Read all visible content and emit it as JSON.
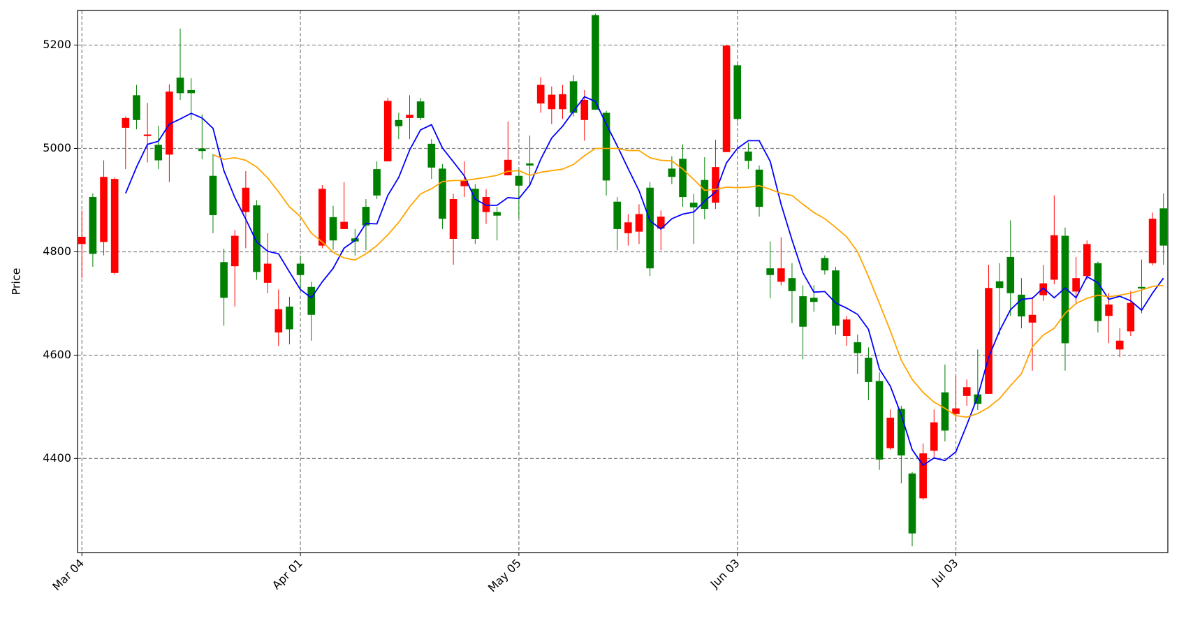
{
  "chart_data": {
    "type": "candlestick",
    "ylabel": "Price",
    "open": [
      4829,
      4796,
      4945,
      4941,
      5059,
      5055,
      5027,
      4977,
      5110,
      5107,
      5107,
      4995,
      4871,
      4711,
      4831,
      4924,
      4761,
      4777,
      4689,
      4650,
      4755,
      4678,
      4922,
      4822,
      4858,
      4820,
      4851,
      4909,
      5092,
      5043,
      5065,
      5059,
      4963,
      4864,
      4902,
      4938,
      4825,
      4906,
      4870,
      4978,
      4928,
      4967,
      5123,
      5104,
      5105,
      5069,
      5094,
      5075,
      4938,
      4844,
      4857,
      4873,
      4768,
      4868,
      4945,
      4906,
      4886,
      4883,
      4964,
      5199,
      5057,
      4976,
      4887,
      4755,
      4768,
      4724,
      4655,
      4703,
      4764,
      4657,
      4669,
      4604,
      4548,
      4398,
      4479,
      4406,
      4255,
      4410,
      4470,
      4454,
      4497,
      4538,
      4506,
      4730,
      4730,
      4720,
      4675,
      4678,
      4739,
      4832,
      4623,
      4749,
      4815,
      4666,
      4698,
      4628,
      4701,
      4729,
      4864,
      4812
    ],
    "high": [
      4880,
      4913,
      4977,
      4944,
      5062,
      5123,
      5088,
      5044,
      5124,
      5232,
      5136,
      5066,
      4989,
      4806,
      4842,
      4956,
      4900,
      4836,
      4727,
      4713,
      4793,
      4742,
      4929,
      4889,
      4935,
      4844,
      4902,
      4975,
      5098,
      5069,
      5103,
      5098,
      5018,
      4970,
      4912,
      4975,
      4931,
      4921,
      4887,
      5052,
      4960,
      5025,
      5138,
      5120,
      5123,
      5142,
      5113,
      5261,
      5073,
      4906,
      4873,
      4892,
      4935,
      4880,
      4985,
      5008,
      4912,
      4983,
      5017,
      5200,
      5164,
      5011,
      4967,
      4820,
      4828,
      4778,
      4735,
      4735,
      4793,
      4771,
      4676,
      4640,
      4615,
      4567,
      4495,
      4502,
      4374,
      4429,
      4495,
      4582,
      4560,
      4553,
      4611,
      4775,
      4778,
      4861,
      4749,
      4713,
      4775,
      4909,
      4847,
      4790,
      4822,
      4781,
      4720,
      4652,
      4724,
      4785,
      4876,
      4913
    ],
    "low": [
      4749,
      4771,
      4793,
      4756,
      4960,
      5037,
      4973,
      4960,
      4935,
      5094,
      5055,
      4979,
      4836,
      4657,
      4694,
      4807,
      4746,
      4720,
      4618,
      4621,
      4727,
      4628,
      4807,
      4804,
      4844,
      4793,
      4803,
      4902,
      4975,
      5018,
      5018,
      5055,
      4941,
      4844,
      4775,
      4906,
      4815,
      4854,
      4822,
      4948,
      4865,
      4927,
      5069,
      5047,
      5057,
      5062,
      5015,
      5075,
      4909,
      4803,
      4812,
      4815,
      4753,
      4803,
      4931,
      4887,
      4815,
      4863,
      4883,
      4993,
      5052,
      4960,
      4868,
      4710,
      4735,
      4662,
      4592,
      4684,
      4756,
      4640,
      4618,
      4564,
      4513,
      4378,
      4417,
      4352,
      4230,
      4320,
      4400,
      4433,
      4473,
      4502,
      4494,
      4525,
      4640,
      4676,
      4652,
      4570,
      4705,
      4737,
      4570,
      4698,
      4746,
      4644,
      4623,
      4596,
      4637,
      4681,
      4774,
      4775
    ],
    "close": [
      4815,
      4906,
      4819,
      4759,
      5040,
      5103,
      5024,
      5007,
      4988,
      5137,
      5113,
      5000,
      4947,
      4780,
      4772,
      4877,
      4890,
      4740,
      4644,
      4694,
      4777,
      4732,
      4812,
      4867,
      4844,
      4826,
      4887,
      4960,
      4975,
      5055,
      5059,
      5091,
      5009,
      4961,
      4825,
      4927,
      4922,
      4877,
      4877,
      4948,
      4947,
      4971,
      5087,
      5076,
      5076,
      5130,
      5055,
      5258,
      5069,
      4897,
      4836,
      4839,
      4924,
      4845,
      4961,
      4980,
      4895,
      4939,
      4895,
      4993,
      5161,
      4994,
      4959,
      4768,
      4742,
      4749,
      4714,
      4711,
      4788,
      4764,
      4637,
      4625,
      4595,
      4550,
      4420,
      4496,
      4371,
      4323,
      4415,
      4528,
      4486,
      4521,
      4524,
      4525,
      4743,
      4790,
      4717,
      4663,
      4716,
      4746,
      4831,
      4723,
      4753,
      4778,
      4676,
      4611,
      4646,
      4732,
      4778,
      4884
    ],
    "up_color": "#008000",
    "down_color": "#ff0000",
    "lines": [
      {
        "color": "#0000ff",
        "values": [
          null,
          null,
          null,
          null,
          4913,
          4964,
          5008,
          5014,
          5047,
          5057,
          5068,
          5059,
          5039,
          4957,
          4905,
          4863,
          4819,
          4801,
          4796,
          4761,
          4727,
          4711,
          4742,
          4768,
          4807,
          4822,
          4855,
          4854,
          4909,
          4944,
          4997,
          5036,
          5046,
          5001,
          4974,
          4947,
          4902,
          4890,
          4890,
          4905,
          4903,
          4929,
          4979,
          5020,
          5043,
          5072,
          5100,
          5091,
          5047,
          5005,
          4961,
          4918,
          4860,
          4844,
          4864,
          4873,
          4877,
          4898,
          4916,
          4972,
          5000,
          5015,
          5015,
          4975,
          4892,
          4823,
          4759,
          4722,
          4723,
          4701,
          4691,
          4679,
          4650,
          4573,
          4540,
          4484,
          4417,
          4387,
          4401,
          4396,
          4413,
          4465,
          4520,
          4596,
          4647,
          4688,
          4708,
          4710,
          4730,
          4711,
          4730,
          4711,
          4752,
          4740,
          4708,
          4714,
          4705,
          4687,
          4720,
          4749
        ]
      },
      {
        "color": "#ffa500",
        "values": [
          null,
          null,
          null,
          null,
          null,
          null,
          null,
          null,
          null,
          null,
          null,
          null,
          4988,
          4979,
          4982,
          4977,
          4964,
          4943,
          4916,
          4887,
          4868,
          4836,
          4819,
          4799,
          4788,
          4784,
          4796,
          4812,
          4833,
          4857,
          4887,
          4912,
          4922,
          4936,
          4938,
          4938,
          4941,
          4944,
          4948,
          4956,
          4957,
          4948,
          4954,
          4957,
          4960,
          4969,
          4986,
          5000,
          5000,
          5000,
          4996,
          4996,
          4982,
          4977,
          4976,
          4960,
          4940,
          4919,
          4921,
          4925,
          4924,
          4925,
          4928,
          4921,
          4913,
          4909,
          4892,
          4876,
          4864,
          4847,
          4829,
          4800,
          4752,
          4700,
          4647,
          4590,
          4553,
          4528,
          4509,
          4497,
          4483,
          4480,
          4487,
          4499,
          4516,
          4541,
          4564,
          4616,
          4639,
          4652,
          4681,
          4700,
          4710,
          4716,
          4713,
          4716,
          4720,
          4726,
          4733,
          4735
        ]
      }
    ],
    "xlim": [
      -0.4,
      99.4
    ],
    "xticks": [
      {
        "value": 0,
        "label": "Mar 04"
      },
      {
        "value": 20,
        "label": "Apr 01"
      },
      {
        "value": 40,
        "label": "May 05"
      },
      {
        "value": 60,
        "label": "Jun 03"
      },
      {
        "value": 80,
        "label": "Jul 03"
      }
    ],
    "ylim": [
      4218,
      5267
    ],
    "yticks": [
      4400,
      4600,
      4800,
      5000,
      5200
    ],
    "grid": true
  }
}
